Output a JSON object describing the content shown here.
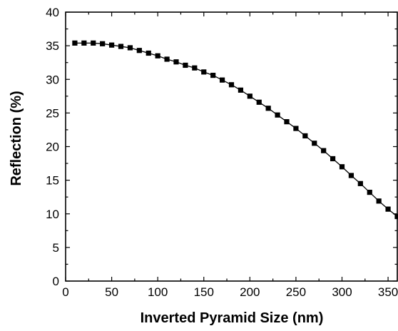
{
  "chart_data": {
    "type": "line",
    "xlabel": "Inverted Pyramid Size (nm)",
    "ylabel": "Reflection (%)",
    "xlim": [
      0,
      360
    ],
    "ylim": [
      0,
      40
    ],
    "x_ticks": [
      0,
      50,
      100,
      150,
      200,
      250,
      300,
      350
    ],
    "y_ticks": [
      0,
      5,
      10,
      15,
      20,
      25,
      30,
      35,
      40
    ],
    "x_tick_labels": [
      "0",
      "50",
      "100",
      "150",
      "200",
      "250",
      "300",
      "350"
    ],
    "y_tick_labels": [
      "0",
      "5",
      "10",
      "15",
      "20",
      "25",
      "30",
      "35",
      "40"
    ],
    "marker": "square",
    "color": "#000000",
    "grid": false,
    "series": [
      {
        "x": [
          10,
          20,
          30,
          40,
          50,
          60,
          70,
          80,
          90,
          100,
          110,
          120,
          130,
          140,
          150,
          160,
          170,
          180,
          190,
          200,
          210,
          220,
          230,
          240,
          250,
          260,
          270,
          280,
          290,
          300,
          310,
          320,
          330,
          340,
          350,
          360
        ],
        "y": [
          35.4,
          35.4,
          35.4,
          35.3,
          35.1,
          34.9,
          34.7,
          34.3,
          33.9,
          33.5,
          33.0,
          32.6,
          32.1,
          31.7,
          31.1,
          30.6,
          29.9,
          29.2,
          28.4,
          27.5,
          26.6,
          25.7,
          24.7,
          23.7,
          22.7,
          21.6,
          20.5,
          19.4,
          18.2,
          17.0,
          15.7,
          14.5,
          13.2,
          11.9,
          10.7,
          9.6
        ]
      }
    ]
  }
}
